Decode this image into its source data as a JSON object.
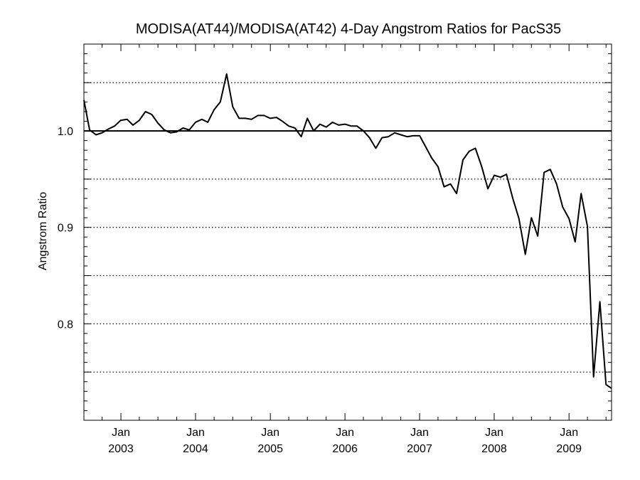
{
  "chart_data": {
    "type": "line",
    "title": "MODISA(AT44)/MODISA(AT42) 4-Day Angstrom Ratios for PacS35",
    "ylabel": "Angstrom Ratio",
    "xlabel": "",
    "xlim": [
      "2002-07-04",
      "2009-07-28"
    ],
    "ylim": [
      0.7,
      1.09
    ],
    "yticks": [
      {
        "value": 0.8,
        "label": "0.8"
      },
      {
        "value": 0.9,
        "label": "0.9"
      },
      {
        "value": 1.0,
        "label": "1.0"
      }
    ],
    "xticks": [
      {
        "date": "2003-01-01",
        "month": "Jan",
        "year": "2003"
      },
      {
        "date": "2004-01-01",
        "month": "Jan",
        "year": "2004"
      },
      {
        "date": "2005-01-01",
        "month": "Jan",
        "year": "2005"
      },
      {
        "date": "2006-01-01",
        "month": "Jan",
        "year": "2006"
      },
      {
        "date": "2007-01-01",
        "month": "Jan",
        "year": "2007"
      },
      {
        "date": "2008-01-01",
        "month": "Jan",
        "year": "2008"
      },
      {
        "date": "2009-01-01",
        "month": "Jan",
        "year": "2009"
      }
    ],
    "reference_line": 1.0,
    "dotted_gridlines": [
      0.75,
      0.8,
      0.85,
      0.9,
      0.95,
      1.05
    ],
    "series": [
      {
        "x": [
          "2002-07-04",
          "2002-08-01",
          "2002-09-01",
          "2002-10-01",
          "2002-11-01",
          "2002-12-01",
          "2002-12-31",
          "2003-01-31",
          "2003-03-01",
          "2003-04-01",
          "2003-05-01",
          "2003-06-01",
          "2003-07-01",
          "2003-08-01",
          "2003-09-01",
          "2003-10-01",
          "2003-11-01",
          "2003-12-01",
          "2004-01-01",
          "2004-02-01",
          "2004-03-01",
          "2004-04-01",
          "2004-05-01",
          "2004-06-01",
          "2004-07-01",
          "2004-08-01",
          "2004-09-01",
          "2004-10-01",
          "2004-11-01",
          "2004-12-01",
          "2004-12-31",
          "2005-01-31",
          "2005-03-01",
          "2005-04-01",
          "2005-05-01",
          "2005-06-01",
          "2005-07-01",
          "2005-08-01",
          "2005-09-01",
          "2005-10-01",
          "2005-11-01",
          "2005-12-01",
          "2006-01-01",
          "2006-02-01",
          "2006-03-01",
          "2006-04-01",
          "2006-05-01",
          "2006-06-01",
          "2006-07-01",
          "2006-08-01",
          "2006-09-01",
          "2006-10-01",
          "2006-11-01",
          "2006-12-01",
          "2007-01-01",
          "2007-02-01",
          "2007-03-01",
          "2007-04-01",
          "2007-05-01",
          "2007-06-01",
          "2007-07-01",
          "2007-08-01",
          "2007-09-01",
          "2007-10-01",
          "2007-11-01",
          "2007-12-01",
          "2008-01-01",
          "2008-02-01",
          "2008-03-01",
          "2008-04-01",
          "2008-05-01",
          "2008-06-01",
          "2008-07-01",
          "2008-08-01",
          "2008-09-01",
          "2008-10-01",
          "2008-11-01",
          "2008-12-01",
          "2009-01-01",
          "2009-01-31",
          "2009-03-01",
          "2009-04-01",
          "2009-05-01",
          "2009-06-01",
          "2009-07-01",
          "2009-07-28"
        ],
        "y": [
          1.032,
          1.001,
          0.996,
          0.998,
          1.002,
          1.005,
          1.011,
          1.012,
          1.006,
          1.011,
          1.02,
          1.017,
          1.008,
          1.001,
          0.998,
          0.999,
          1.003,
          1.001,
          1.009,
          1.012,
          1.009,
          1.022,
          1.03,
          1.059,
          1.025,
          1.013,
          1.013,
          1.012,
          1.016,
          1.016,
          1.013,
          1.014,
          1.01,
          1.005,
          1.003,
          0.994,
          1.013,
          1.0,
          1.007,
          1.004,
          1.009,
          1.006,
          1.007,
          1.005,
          1.005,
          1.0,
          0.993,
          0.982,
          0.993,
          0.994,
          0.998,
          0.996,
          0.994,
          0.995,
          0.995,
          0.983,
          0.972,
          0.963,
          0.942,
          0.945,
          0.935,
          0.97,
          0.979,
          0.982,
          0.963,
          0.94,
          0.954,
          0.952,
          0.955,
          0.93,
          0.909,
          0.872,
          0.91,
          0.891,
          0.957,
          0.96,
          0.945,
          0.921,
          0.909,
          0.885,
          0.935,
          0.901,
          0.745,
          0.823,
          0.737,
          0.733
        ]
      }
    ],
    "grid": false,
    "colors": {
      "line": "#000000",
      "axes": "#000000",
      "background": "#ffffff"
    }
  }
}
